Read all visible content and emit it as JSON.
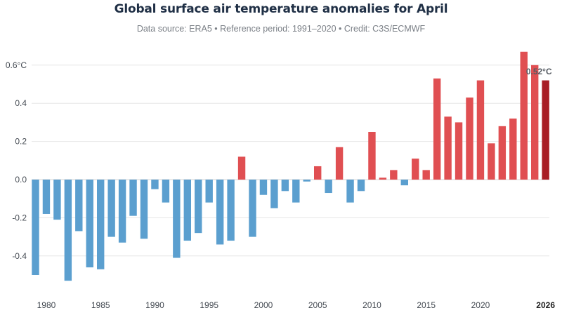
{
  "title": "Global surface air temperature anomalies for April",
  "subtitle": "Data source: ERA5 • Reference period: 1991–2020 • Credit: C3S/ECMWF",
  "colors": {
    "negative": "#5b9fcf",
    "positive": "#e04f52",
    "latest": "#a81e25",
    "grid": "#e6e6e6"
  },
  "chart_data": {
    "type": "bar",
    "title": "Global surface air temperature anomalies for April",
    "subtitle": "Data source: ERA5 • Reference period: 1991–2020 • Credit: C3S/ECMWF",
    "x": [
      1979,
      1980,
      1981,
      1982,
      1983,
      1984,
      1985,
      1986,
      1987,
      1988,
      1989,
      1990,
      1991,
      1992,
      1993,
      1994,
      1995,
      1996,
      1997,
      1998,
      1999,
      2000,
      2001,
      2002,
      2003,
      2004,
      2005,
      2006,
      2007,
      2008,
      2009,
      2010,
      2011,
      2012,
      2013,
      2014,
      2015,
      2016,
      2017,
      2018,
      2019,
      2020,
      2021,
      2022,
      2023,
      2024,
      2025,
      2026
    ],
    "values": [
      -0.5,
      -0.18,
      -0.21,
      -0.53,
      -0.27,
      -0.46,
      -0.47,
      -0.3,
      -0.33,
      -0.19,
      -0.31,
      -0.05,
      -0.12,
      -0.41,
      -0.32,
      -0.28,
      -0.12,
      -0.34,
      -0.32,
      0.12,
      -0.3,
      -0.08,
      -0.15,
      -0.06,
      -0.12,
      -0.01,
      0.07,
      -0.07,
      0.17,
      -0.12,
      -0.06,
      0.25,
      0.01,
      0.05,
      -0.03,
      0.11,
      0.05,
      0.53,
      0.33,
      0.3,
      0.43,
      0.52,
      0.19,
      0.28,
      0.32,
      0.67,
      0.6,
      0.52
    ],
    "xticks": [
      "1980",
      "1985",
      "1990",
      "1995",
      "2000",
      "2005",
      "2010",
      "2015",
      "2020",
      "2026"
    ],
    "yticks": [
      "0.6°C",
      "0.4",
      "0.2",
      "0.0",
      "-0.2",
      "-0.4"
    ],
    "ylim": [
      -0.55,
      0.7
    ],
    "xlabel": "",
    "ylabel": "",
    "last_label": "0.52°C",
    "grid": true
  }
}
